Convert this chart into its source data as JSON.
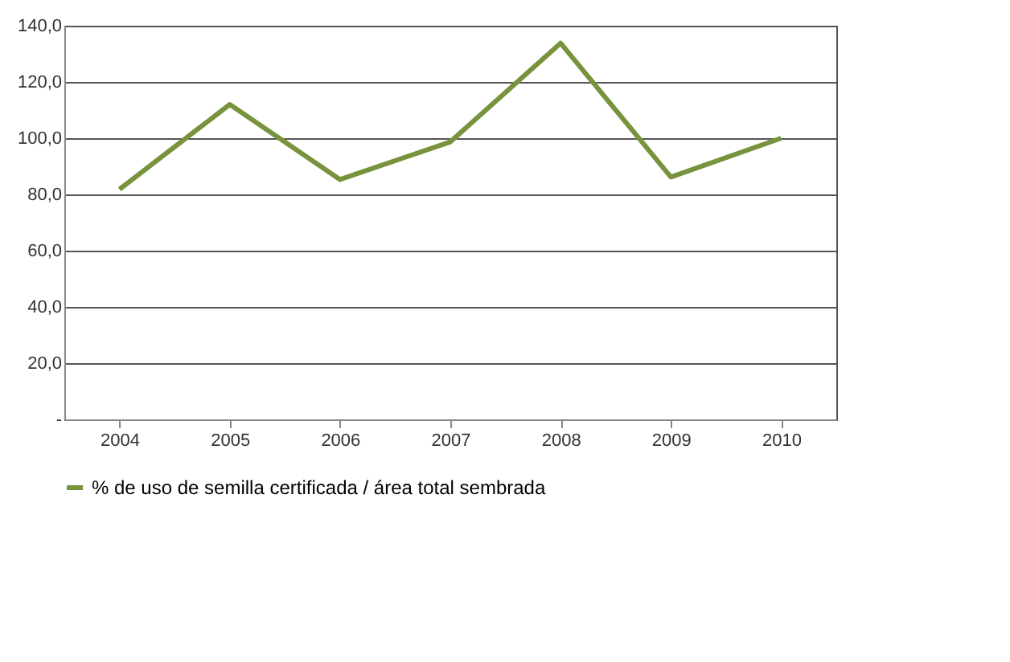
{
  "chart_data": {
    "type": "line",
    "categories": [
      "2004",
      "2005",
      "2006",
      "2007",
      "2008",
      "2009",
      "2010"
    ],
    "series": [
      {
        "name": "% de uso de semilla certificada / área total sembrada",
        "color": "#77933c",
        "values": [
          81.8,
          112,
          85.3,
          98.7,
          133.8,
          86.2,
          100
        ]
      }
    ],
    "ylim": [
      0,
      140
    ],
    "yticks": [
      {
        "value": 0,
        "label": "-"
      },
      {
        "value": 20,
        "label": "20,0"
      },
      {
        "value": 40,
        "label": "40,0"
      },
      {
        "value": 60,
        "label": "60,0"
      },
      {
        "value": 80,
        "label": "80,0"
      },
      {
        "value": 100,
        "label": "100,0"
      },
      {
        "value": 120,
        "label": "120,0"
      },
      {
        "value": 140,
        "label": "140,0"
      }
    ],
    "grid": "y",
    "legend": "bottom",
    "marker": "none",
    "line_style": "solid"
  }
}
